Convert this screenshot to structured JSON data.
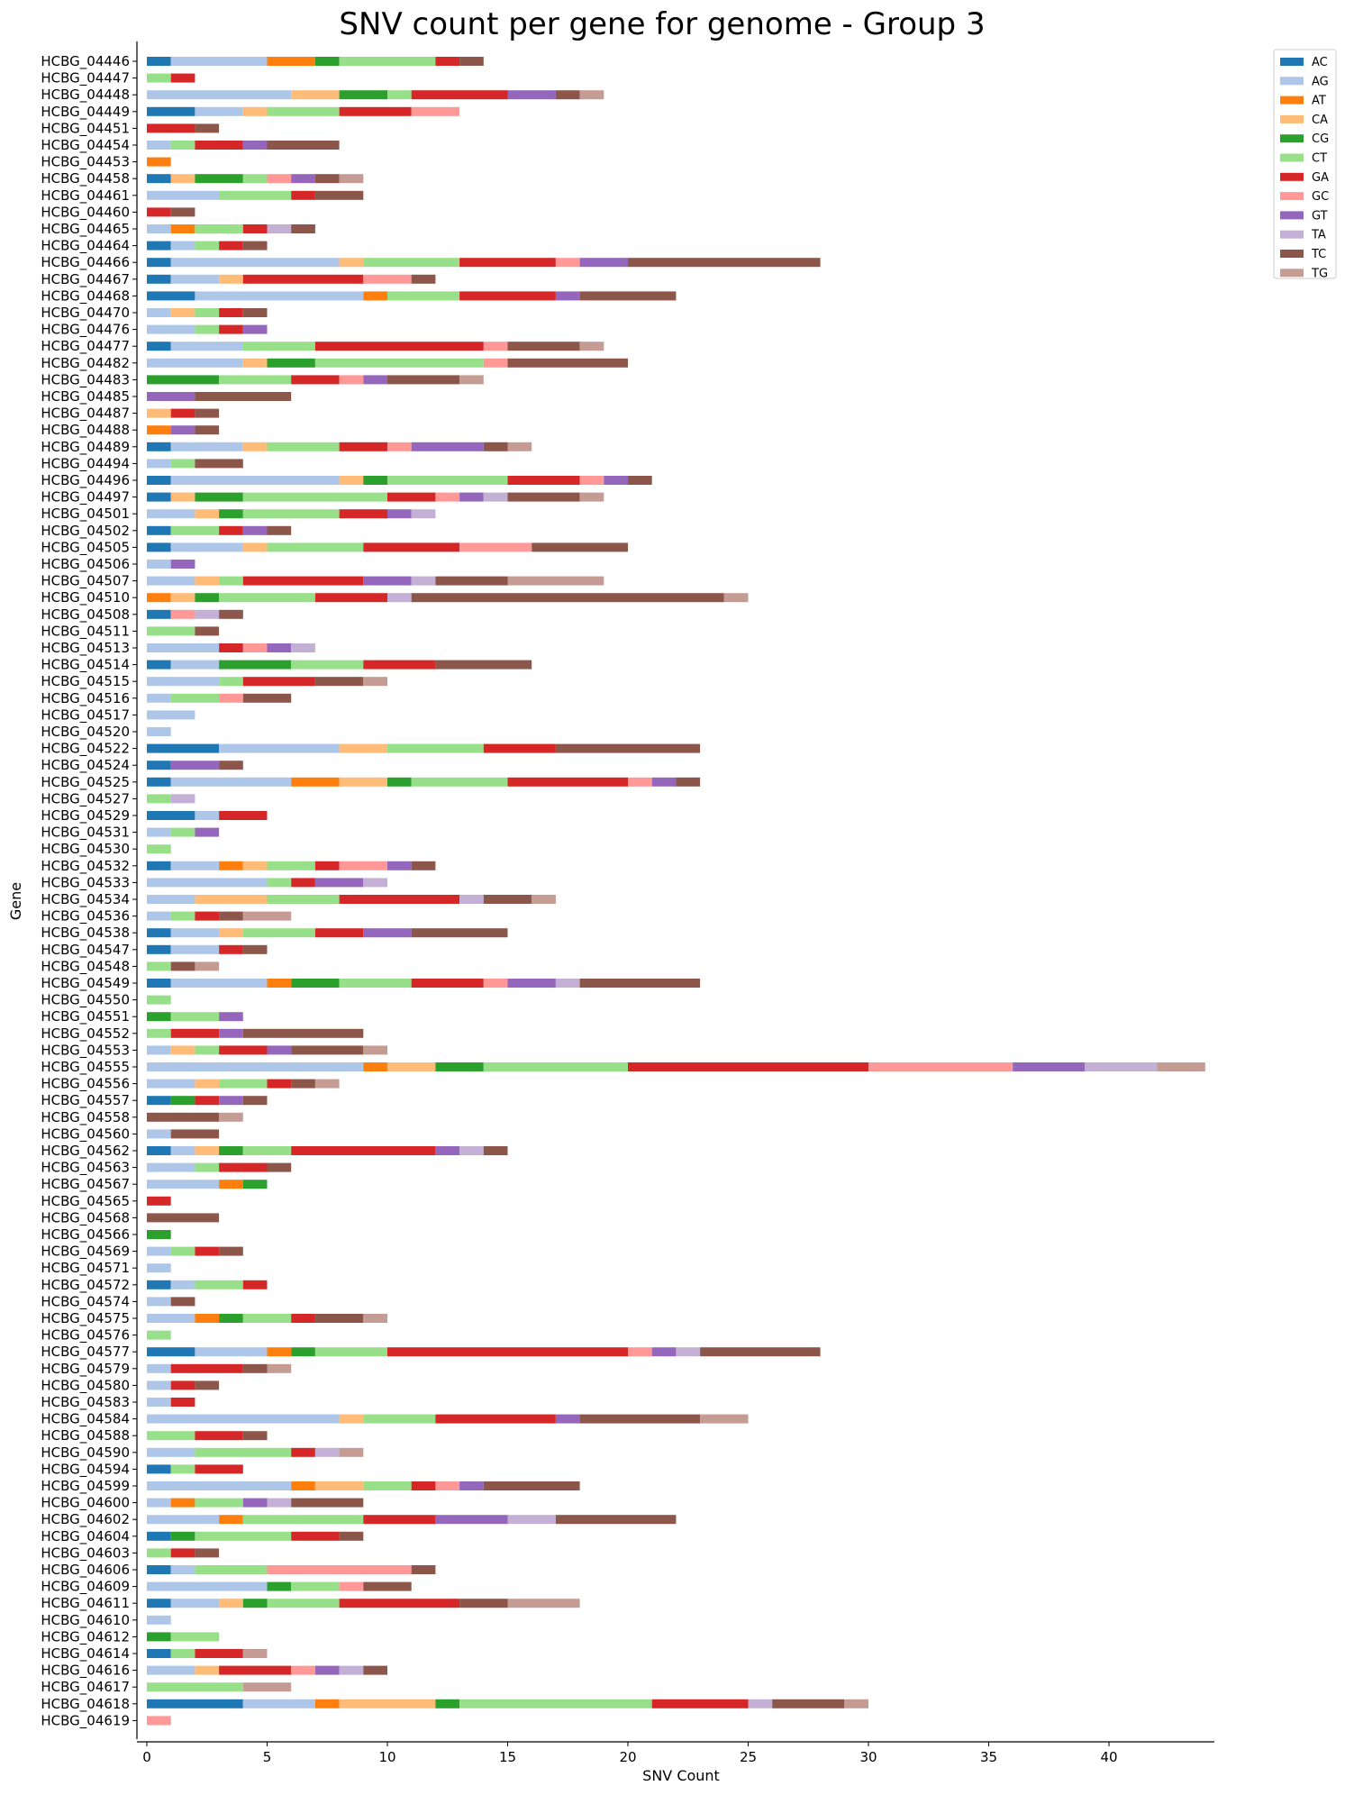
{
  "chart_data": {
    "type": "bar",
    "orientation": "horizontal",
    "stacked": true,
    "title": "SNV count per gene for genome - Group 3",
    "xlabel": "SNV Count",
    "ylabel": "Gene",
    "xlim": [
      0,
      44.5
    ],
    "xticks": [
      0,
      5,
      10,
      15,
      20,
      25,
      30,
      35,
      40
    ],
    "grid": false,
    "legend_position": "top-right outside",
    "series": [
      {
        "name": "AC",
        "color": "#1f77b4"
      },
      {
        "name": "AG",
        "color": "#aec7e8"
      },
      {
        "name": "AT",
        "color": "#ff7f0e"
      },
      {
        "name": "CA",
        "color": "#ffbb78"
      },
      {
        "name": "CG",
        "color": "#2ca02c"
      },
      {
        "name": "CT",
        "color": "#98df8a"
      },
      {
        "name": "GA",
        "color": "#d62728"
      },
      {
        "name": "GC",
        "color": "#ff9896"
      },
      {
        "name": "GT",
        "color": "#9467bd"
      },
      {
        "name": "TA",
        "color": "#c5b0d5"
      },
      {
        "name": "TC",
        "color": "#8c564b"
      },
      {
        "name": "TG",
        "color": "#c49c94"
      }
    ],
    "categories": [
      "HCBG_04446",
      "HCBG_04447",
      "HCBG_04448",
      "HCBG_04449",
      "HCBG_04451",
      "HCBG_04454",
      "HCBG_04453",
      "HCBG_04458",
      "HCBG_04461",
      "HCBG_04460",
      "HCBG_04465",
      "HCBG_04464",
      "HCBG_04466",
      "HCBG_04467",
      "HCBG_04468",
      "HCBG_04470",
      "HCBG_04476",
      "HCBG_04477",
      "HCBG_04482",
      "HCBG_04483",
      "HCBG_04485",
      "HCBG_04487",
      "HCBG_04488",
      "HCBG_04489",
      "HCBG_04494",
      "HCBG_04496",
      "HCBG_04497",
      "HCBG_04501",
      "HCBG_04502",
      "HCBG_04505",
      "HCBG_04506",
      "HCBG_04507",
      "HCBG_04510",
      "HCBG_04508",
      "HCBG_04511",
      "HCBG_04513",
      "HCBG_04514",
      "HCBG_04515",
      "HCBG_04516",
      "HCBG_04517",
      "HCBG_04520",
      "HCBG_04522",
      "HCBG_04524",
      "HCBG_04525",
      "HCBG_04527",
      "HCBG_04529",
      "HCBG_04531",
      "HCBG_04530",
      "HCBG_04532",
      "HCBG_04533",
      "HCBG_04534",
      "HCBG_04536",
      "HCBG_04538",
      "HCBG_04547",
      "HCBG_04548",
      "HCBG_04549",
      "HCBG_04550",
      "HCBG_04551",
      "HCBG_04552",
      "HCBG_04553",
      "HCBG_04555",
      "HCBG_04556",
      "HCBG_04557",
      "HCBG_04558",
      "HCBG_04560",
      "HCBG_04562",
      "HCBG_04563",
      "HCBG_04567",
      "HCBG_04565",
      "HCBG_04568",
      "HCBG_04566",
      "HCBG_04569",
      "HCBG_04571",
      "HCBG_04572",
      "HCBG_04574",
      "HCBG_04575",
      "HCBG_04576",
      "HCBG_04577",
      "HCBG_04579",
      "HCBG_04580",
      "HCBG_04583",
      "HCBG_04584",
      "HCBG_04588",
      "HCBG_04590",
      "HCBG_04594",
      "HCBG_04599",
      "HCBG_04600",
      "HCBG_04602",
      "HCBG_04604",
      "HCBG_04603",
      "HCBG_04606",
      "HCBG_04609",
      "HCBG_04611",
      "HCBG_04610",
      "HCBG_04612",
      "HCBG_04614",
      "HCBG_04616",
      "HCBG_04617",
      "HCBG_04618",
      "HCBG_04619"
    ],
    "values": [
      [
        1,
        4,
        2,
        0,
        1,
        4,
        1,
        0,
        0,
        0,
        1,
        0
      ],
      [
        0,
        0,
        0,
        0,
        0,
        1,
        1,
        0,
        0,
        0,
        0,
        0
      ],
      [
        0,
        6,
        0,
        2,
        2,
        1,
        4,
        0,
        2,
        0,
        1,
        1
      ],
      [
        2,
        2,
        0,
        1,
        0,
        3,
        3,
        2,
        0,
        0,
        0,
        0
      ],
      [
        0,
        0,
        0,
        0,
        0,
        0,
        2,
        0,
        0,
        0,
        1,
        0
      ],
      [
        0,
        1,
        0,
        0,
        0,
        1,
        2,
        0,
        1,
        0,
        3,
        0
      ],
      [
        0,
        0,
        1,
        0,
        0,
        0,
        0,
        0,
        0,
        0,
        0,
        0
      ],
      [
        1,
        0,
        0,
        1,
        2,
        1,
        0,
        1,
        1,
        0,
        1,
        1
      ],
      [
        0,
        3,
        0,
        0,
        0,
        3,
        1,
        0,
        0,
        0,
        2,
        0
      ],
      [
        0,
        0,
        0,
        0,
        0,
        0,
        1,
        0,
        0,
        0,
        1,
        0
      ],
      [
        0,
        1,
        1,
        0,
        0,
        2,
        1,
        0,
        0,
        1,
        1,
        0
      ],
      [
        1,
        1,
        0,
        0,
        0,
        1,
        1,
        0,
        0,
        0,
        1,
        0
      ],
      [
        1,
        7,
        0,
        1,
        0,
        4,
        4,
        1,
        2,
        0,
        8,
        0
      ],
      [
        1,
        2,
        0,
        1,
        0,
        0,
        5,
        2,
        0,
        0,
        1,
        0
      ],
      [
        2,
        7,
        1,
        0,
        0,
        3,
        4,
        0,
        1,
        0,
        4,
        0
      ],
      [
        0,
        1,
        0,
        1,
        0,
        1,
        1,
        0,
        0,
        0,
        1,
        0
      ],
      [
        0,
        2,
        0,
        0,
        0,
        1,
        1,
        0,
        1,
        0,
        0,
        0
      ],
      [
        1,
        3,
        0,
        0,
        0,
        3,
        7,
        1,
        0,
        0,
        3,
        1
      ],
      [
        0,
        4,
        0,
        1,
        2,
        7,
        0,
        1,
        0,
        0,
        5,
        0
      ],
      [
        0,
        0,
        0,
        0,
        3,
        3,
        2,
        1,
        1,
        0,
        3,
        1
      ],
      [
        0,
        0,
        0,
        0,
        0,
        0,
        0,
        0,
        2,
        0,
        4,
        0
      ],
      [
        0,
        0,
        0,
        1,
        0,
        0,
        1,
        0,
        0,
        0,
        1,
        0
      ],
      [
        0,
        0,
        1,
        0,
        0,
        0,
        0,
        0,
        1,
        0,
        1,
        0
      ],
      [
        1,
        3,
        0,
        1,
        0,
        3,
        2,
        1,
        3,
        0,
        1,
        1
      ],
      [
        0,
        1,
        0,
        0,
        0,
        1,
        0,
        0,
        0,
        0,
        2,
        0
      ],
      [
        1,
        7,
        0,
        1,
        1,
        5,
        3,
        1,
        1,
        0,
        1,
        0
      ],
      [
        1,
        0,
        0,
        1,
        2,
        6,
        2,
        1,
        1,
        1,
        3,
        1
      ],
      [
        0,
        2,
        0,
        1,
        1,
        4,
        2,
        0,
        1,
        1,
        0,
        0
      ],
      [
        1,
        0,
        0,
        0,
        0,
        2,
        1,
        0,
        1,
        0,
        1,
        0
      ],
      [
        1,
        3,
        0,
        1,
        0,
        4,
        4,
        3,
        0,
        0,
        4,
        0
      ],
      [
        0,
        1,
        0,
        0,
        0,
        0,
        0,
        0,
        1,
        0,
        0,
        0
      ],
      [
        0,
        2,
        0,
        1,
        0,
        1,
        5,
        0,
        2,
        1,
        3,
        4
      ],
      [
        0,
        0,
        1,
        1,
        1,
        4,
        3,
        0,
        0,
        1,
        13,
        1
      ],
      [
        1,
        0,
        0,
        0,
        0,
        0,
        0,
        1,
        0,
        1,
        1,
        0
      ],
      [
        0,
        0,
        0,
        0,
        0,
        2,
        0,
        0,
        0,
        0,
        1,
        0
      ],
      [
        0,
        3,
        0,
        0,
        0,
        0,
        1,
        1,
        1,
        1,
        0,
        0
      ],
      [
        1,
        2,
        0,
        0,
        3,
        3,
        3,
        0,
        0,
        0,
        4,
        0
      ],
      [
        0,
        3,
        0,
        0,
        0,
        1,
        3,
        0,
        0,
        0,
        2,
        1
      ],
      [
        0,
        1,
        0,
        0,
        0,
        2,
        0,
        1,
        0,
        0,
        2,
        0
      ],
      [
        0,
        2,
        0,
        0,
        0,
        0,
        0,
        0,
        0,
        0,
        0,
        0
      ],
      [
        0,
        1,
        0,
        0,
        0,
        0,
        0,
        0,
        0,
        0,
        0,
        0
      ],
      [
        3,
        5,
        0,
        2,
        0,
        4,
        3,
        0,
        0,
        0,
        6,
        0
      ],
      [
        1,
        0,
        0,
        0,
        0,
        0,
        0,
        0,
        2,
        0,
        1,
        0
      ],
      [
        1,
        5,
        2,
        2,
        1,
        4,
        5,
        1,
        1,
        0,
        1,
        0
      ],
      [
        0,
        0,
        0,
        0,
        0,
        1,
        0,
        0,
        0,
        1,
        0,
        0
      ],
      [
        2,
        1,
        0,
        0,
        0,
        0,
        2,
        0,
        0,
        0,
        0,
        0
      ],
      [
        0,
        1,
        0,
        0,
        0,
        1,
        0,
        0,
        1,
        0,
        0,
        0
      ],
      [
        0,
        0,
        0,
        0,
        0,
        1,
        0,
        0,
        0,
        0,
        0,
        0
      ],
      [
        1,
        2,
        1,
        1,
        0,
        2,
        1,
        2,
        1,
        0,
        1,
        0
      ],
      [
        0,
        5,
        0,
        0,
        0,
        1,
        1,
        0,
        2,
        1,
        0,
        0
      ],
      [
        0,
        2,
        0,
        3,
        0,
        3,
        5,
        0,
        0,
        1,
        2,
        1
      ],
      [
        0,
        1,
        0,
        0,
        0,
        1,
        1,
        0,
        0,
        0,
        1,
        2
      ],
      [
        1,
        2,
        0,
        1,
        0,
        3,
        2,
        0,
        2,
        0,
        4,
        0
      ],
      [
        1,
        2,
        0,
        0,
        0,
        0,
        1,
        0,
        0,
        0,
        1,
        0
      ],
      [
        0,
        0,
        0,
        0,
        0,
        1,
        0,
        0,
        0,
        0,
        1,
        1
      ],
      [
        1,
        4,
        1,
        0,
        2,
        3,
        3,
        1,
        2,
        1,
        5,
        0
      ],
      [
        0,
        0,
        0,
        0,
        0,
        1,
        0,
        0,
        0,
        0,
        0,
        0
      ],
      [
        0,
        0,
        0,
        0,
        1,
        2,
        0,
        0,
        1,
        0,
        0,
        0
      ],
      [
        0,
        0,
        0,
        0,
        0,
        1,
        2,
        0,
        1,
        0,
        5,
        0
      ],
      [
        0,
        1,
        0,
        1,
        0,
        1,
        2,
        0,
        1,
        0,
        3,
        1
      ],
      [
        0,
        9,
        1,
        2,
        2,
        6,
        10,
        6,
        3,
        3,
        0,
        2
      ],
      [
        0,
        2,
        0,
        1,
        0,
        2,
        1,
        0,
        0,
        0,
        1,
        1
      ],
      [
        1,
        0,
        0,
        0,
        1,
        0,
        1,
        0,
        1,
        0,
        1,
        0
      ],
      [
        0,
        0,
        0,
        0,
        0,
        0,
        0,
        0,
        0,
        0,
        3,
        1
      ],
      [
        0,
        1,
        0,
        0,
        0,
        0,
        0,
        0,
        0,
        0,
        2,
        0
      ],
      [
        1,
        1,
        0,
        1,
        1,
        2,
        6,
        0,
        1,
        1,
        1,
        0
      ],
      [
        0,
        2,
        0,
        0,
        0,
        1,
        2,
        0,
        0,
        0,
        1,
        0
      ],
      [
        0,
        3,
        1,
        0,
        1,
        0,
        0,
        0,
        0,
        0,
        0,
        0
      ],
      [
        0,
        0,
        0,
        0,
        0,
        0,
        1,
        0,
        0,
        0,
        0,
        0
      ],
      [
        0,
        0,
        0,
        0,
        0,
        0,
        0,
        0,
        0,
        0,
        3,
        0
      ],
      [
        0,
        0,
        0,
        0,
        1,
        0,
        0,
        0,
        0,
        0,
        0,
        0
      ],
      [
        0,
        1,
        0,
        0,
        0,
        1,
        1,
        0,
        0,
        0,
        1,
        0
      ],
      [
        0,
        1,
        0,
        0,
        0,
        0,
        0,
        0,
        0,
        0,
        0,
        0
      ],
      [
        1,
        1,
        0,
        0,
        0,
        2,
        1,
        0,
        0,
        0,
        0,
        0
      ],
      [
        0,
        1,
        0,
        0,
        0,
        0,
        0,
        0,
        0,
        0,
        1,
        0
      ],
      [
        0,
        2,
        1,
        0,
        1,
        2,
        1,
        0,
        0,
        0,
        2,
        1
      ],
      [
        0,
        0,
        0,
        0,
        0,
        1,
        0,
        0,
        0,
        0,
        0,
        0
      ],
      [
        2,
        3,
        1,
        0,
        1,
        3,
        10,
        1,
        1,
        1,
        5,
        0
      ],
      [
        0,
        1,
        0,
        0,
        0,
        0,
        3,
        0,
        0,
        0,
        1,
        1
      ],
      [
        0,
        1,
        0,
        0,
        0,
        0,
        1,
        0,
        0,
        0,
        1,
        0
      ],
      [
        0,
        1,
        0,
        0,
        0,
        0,
        1,
        0,
        0,
        0,
        0,
        0
      ],
      [
        0,
        8,
        0,
        1,
        0,
        3,
        5,
        0,
        1,
        0,
        5,
        2
      ],
      [
        0,
        0,
        0,
        0,
        0,
        2,
        2,
        0,
        0,
        0,
        1,
        0
      ],
      [
        0,
        2,
        0,
        0,
        0,
        4,
        1,
        0,
        0,
        1,
        0,
        1
      ],
      [
        1,
        0,
        0,
        0,
        0,
        1,
        2,
        0,
        0,
        0,
        0,
        0
      ],
      [
        0,
        6,
        1,
        2,
        0,
        2,
        1,
        1,
        1,
        0,
        4,
        0
      ],
      [
        0,
        1,
        1,
        0,
        0,
        2,
        0,
        0,
        1,
        1,
        3,
        0
      ],
      [
        0,
        3,
        1,
        0,
        0,
        5,
        3,
        0,
        3,
        2,
        5,
        0
      ],
      [
        1,
        0,
        0,
        0,
        1,
        4,
        2,
        0,
        0,
        0,
        1,
        0
      ],
      [
        0,
        0,
        0,
        0,
        0,
        1,
        1,
        0,
        0,
        0,
        1,
        0
      ],
      [
        1,
        1,
        0,
        0,
        0,
        3,
        0,
        6,
        0,
        0,
        1,
        0
      ],
      [
        0,
        5,
        0,
        0,
        1,
        2,
        0,
        1,
        0,
        0,
        2,
        0
      ],
      [
        1,
        2,
        0,
        1,
        1,
        3,
        5,
        0,
        0,
        0,
        2,
        3
      ],
      [
        0,
        1,
        0,
        0,
        0,
        0,
        0,
        0,
        0,
        0,
        0,
        0
      ],
      [
        0,
        0,
        0,
        0,
        1,
        2,
        0,
        0,
        0,
        0,
        0,
        0
      ],
      [
        1,
        0,
        0,
        0,
        0,
        1,
        2,
        0,
        0,
        0,
        0,
        1
      ],
      [
        0,
        2,
        0,
        1,
        0,
        0,
        3,
        1,
        1,
        1,
        1,
        0
      ],
      [
        0,
        0,
        0,
        0,
        0,
        4,
        0,
        0,
        0,
        0,
        0,
        2
      ],
      [
        4,
        3,
        1,
        4,
        1,
        8,
        4,
        0,
        0,
        1,
        3,
        1
      ],
      [
        0,
        0,
        0,
        0,
        0,
        0,
        0,
        1,
        0,
        0,
        0,
        0
      ]
    ]
  }
}
